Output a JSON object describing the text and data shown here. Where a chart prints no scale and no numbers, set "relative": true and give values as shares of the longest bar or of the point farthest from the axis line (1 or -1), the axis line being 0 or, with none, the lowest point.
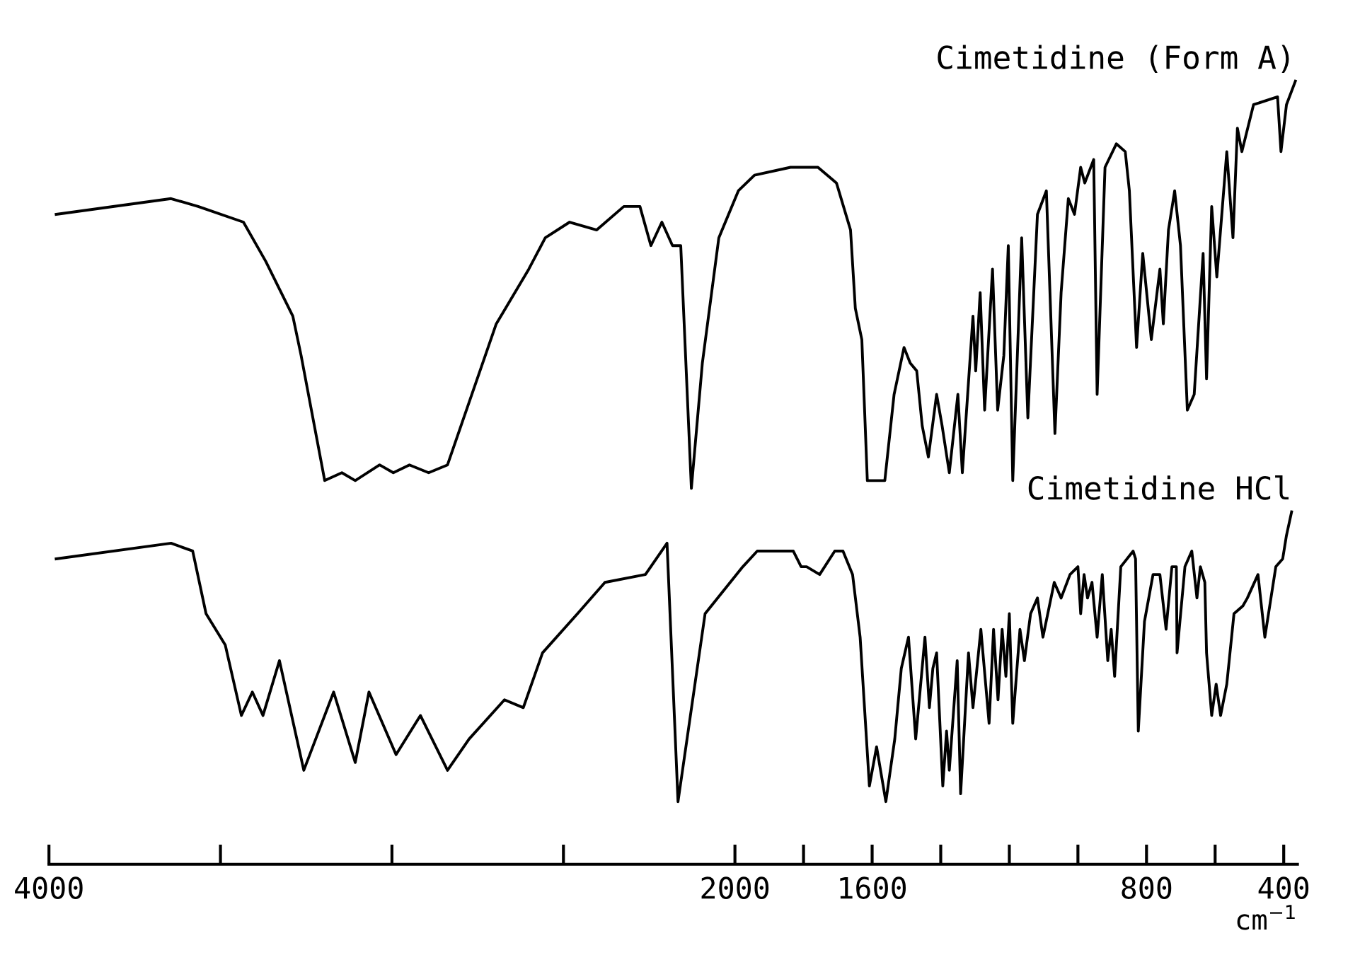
{
  "chart_data": {
    "type": "line",
    "relative": true,
    "xlim": [
      4000,
      360
    ],
    "xlabel": "cm$^{−1}$",
    "xticks": [
      4000,
      {
        "value": 3500,
        "label": null
      },
      {
        "value": 3000,
        "label": null
      },
      {
        "value": 2500,
        "label": null
      },
      2000,
      {
        "value": 1800,
        "label": null
      },
      1600,
      {
        "value": 1400,
        "label": null
      },
      {
        "value": 1200,
        "label": null
      },
      {
        "value": 1000,
        "label": null
      },
      800,
      {
        "value": 600,
        "label": null
      },
      400
    ],
    "series": [
      {
        "name": "Cimetidine (Form A)",
        "color": "#000000",
        "x": [
          3979,
          3644,
          3565,
          3433,
          3368,
          3289,
          3265,
          3196,
          3146,
          3107,
          3036,
          2996,
          2949,
          2893,
          2838,
          2775,
          2696,
          2601,
          2553,
          2482,
          2403,
          2324,
          2277,
          2245,
          2213,
          2182,
          2158,
          2127,
          2095,
          2047,
          1990,
          1943,
          1838,
          1758,
          1704,
          1663,
          1649,
          1630,
          1614,
          1563,
          1536,
          1507,
          1489,
          1470,
          1454,
          1436,
          1412,
          1396,
          1375,
          1350,
          1337,
          1306,
          1298,
          1285,
          1272,
          1249,
          1234,
          1216,
          1203,
          1190,
          1164,
          1146,
          1118,
          1092,
          1067,
          1049,
          1028,
          1010,
          992,
          980,
          954,
          944,
          921,
          888,
          862,
          850,
          829,
          811,
          786,
          761,
          751,
          736,
          718,
          701,
          681,
          661,
          635,
          625,
          610,
          595,
          566,
          548,
          535,
          522,
          488,
          418,
          408,
          392,
          366
        ],
        "values": [
          0.83,
          0.85,
          0.84,
          0.82,
          0.77,
          0.7,
          0.65,
          0.49,
          0.5,
          0.49,
          0.51,
          0.5,
          0.51,
          0.5,
          0.51,
          0.59,
          0.69,
          0.76,
          0.8,
          0.82,
          0.81,
          0.84,
          0.84,
          0.79,
          0.82,
          0.79,
          0.79,
          0.48,
          0.64,
          0.8,
          0.86,
          0.88,
          0.89,
          0.89,
          0.87,
          0.81,
          0.71,
          0.67,
          0.49,
          0.49,
          0.6,
          0.66,
          0.64,
          0.63,
          0.56,
          0.52,
          0.6,
          0.56,
          0.5,
          0.6,
          0.5,
          0.7,
          0.63,
          0.73,
          0.58,
          0.76,
          0.58,
          0.65,
          0.79,
          0.49,
          0.8,
          0.57,
          0.83,
          0.86,
          0.55,
          0.73,
          0.85,
          0.83,
          0.89,
          0.87,
          0.9,
          0.6,
          0.89,
          0.92,
          0.91,
          0.86,
          0.66,
          0.78,
          0.67,
          0.76,
          0.69,
          0.81,
          0.86,
          0.79,
          0.58,
          0.6,
          0.78,
          0.62,
          0.84,
          0.75,
          0.91,
          0.8,
          0.94,
          0.91,
          0.97,
          0.98,
          0.91,
          0.97,
          1.0
        ]
      },
      {
        "name": "Cimetidine HCl",
        "color": "#000000",
        "x": [
          3979,
          3644,
          3581,
          3542,
          3486,
          3439,
          3407,
          3376,
          3328,
          3257,
          3170,
          3107,
          3067,
          2988,
          2917,
          2838,
          2775,
          2672,
          2617,
          2561,
          2459,
          2379,
          2261,
          2198,
          2166,
          2087,
          1977,
          1935,
          1830,
          1807,
          1791,
          1753,
          1709,
          1685,
          1657,
          1635,
          1608,
          1587,
          1560,
          1534,
          1515,
          1494,
          1473,
          1446,
          1433,
          1423,
          1412,
          1394,
          1383,
          1375,
          1352,
          1342,
          1319,
          1306,
          1283,
          1259,
          1246,
          1233,
          1221,
          1210,
          1200,
          1190,
          1169,
          1156,
          1138,
          1118,
          1102,
          1069,
          1049,
          1023,
          1000,
          992,
          982,
          972,
          959,
          944,
          929,
          913,
          903,
          893,
          875,
          839,
          832,
          824,
          806,
          781,
          761,
          743,
          726,
          713,
          711,
          688,
          668,
          653,
          643,
          630,
          625,
          610,
          597,
          584,
          566,
          545,
          519,
          506,
          475,
          455,
          423,
          403,
          392,
          377
        ],
        "values": [
          0.39,
          0.41,
          0.4,
          0.32,
          0.28,
          0.19,
          0.22,
          0.19,
          0.26,
          0.12,
          0.22,
          0.13,
          0.22,
          0.14,
          0.19,
          0.12,
          0.16,
          0.21,
          0.2,
          0.27,
          0.32,
          0.36,
          0.37,
          0.41,
          0.08,
          0.32,
          0.38,
          0.4,
          0.4,
          0.38,
          0.38,
          0.37,
          0.4,
          0.4,
          0.37,
          0.29,
          0.1,
          0.15,
          0.08,
          0.16,
          0.25,
          0.29,
          0.16,
          0.29,
          0.2,
          0.25,
          0.27,
          0.1,
          0.17,
          0.12,
          0.26,
          0.09,
          0.27,
          0.2,
          0.3,
          0.18,
          0.3,
          0.21,
          0.3,
          0.24,
          0.32,
          0.18,
          0.3,
          0.26,
          0.32,
          0.34,
          0.29,
          0.36,
          0.34,
          0.37,
          0.38,
          0.32,
          0.37,
          0.34,
          0.36,
          0.29,
          0.37,
          0.26,
          0.3,
          0.24,
          0.38,
          0.4,
          0.39,
          0.17,
          0.31,
          0.37,
          0.37,
          0.3,
          0.38,
          0.38,
          0.27,
          0.38,
          0.4,
          0.34,
          0.38,
          0.36,
          0.27,
          0.19,
          0.23,
          0.19,
          0.23,
          0.32,
          0.33,
          0.34,
          0.37,
          0.29,
          0.38,
          0.39,
          0.42,
          0.45
        ]
      }
    ]
  }
}
